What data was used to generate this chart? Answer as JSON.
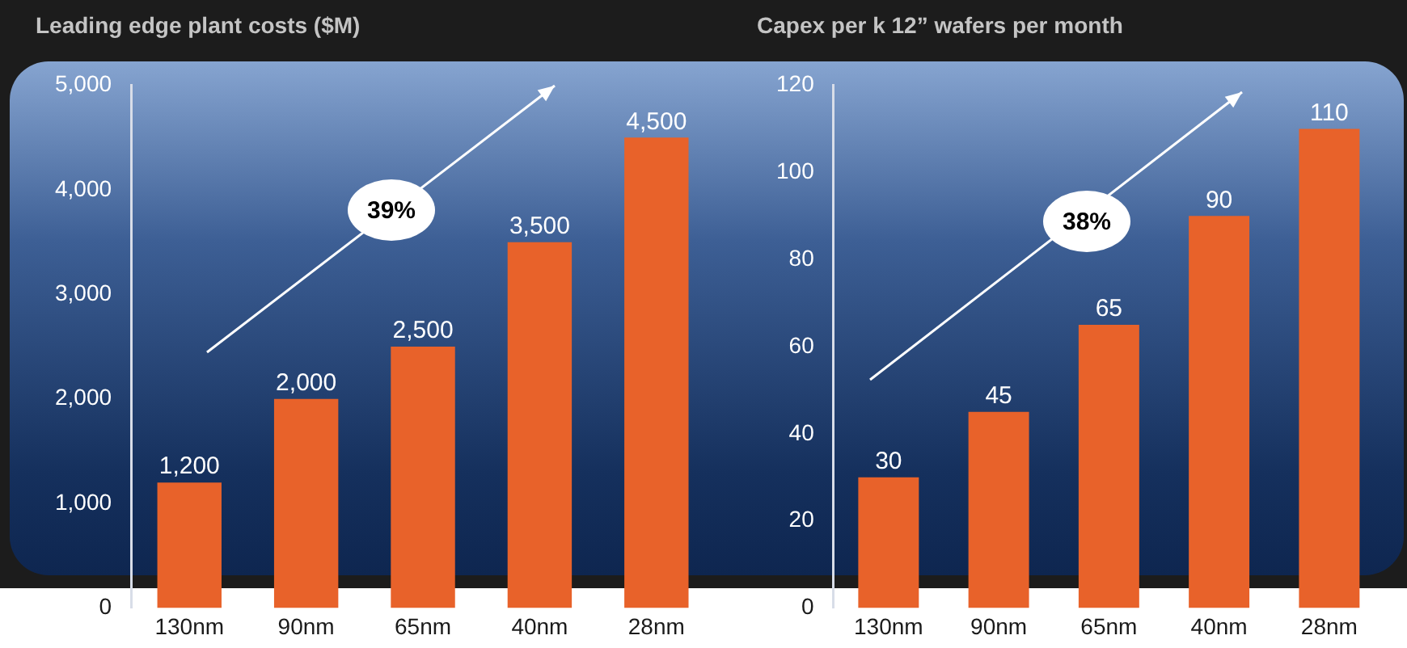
{
  "chart_data": [
    {
      "type": "bar",
      "title": "Leading edge plant costs ($M)",
      "categories": [
        "130nm",
        "90nm",
        "65nm",
        "40nm",
        "28nm"
      ],
      "values": [
        1200,
        2000,
        2500,
        3500,
        4500
      ],
      "value_labels": [
        "1,200",
        "2,000",
        "2,500",
        "3,500",
        "4,500"
      ],
      "color": "#e8622a",
      "ylim": [
        0,
        5000
      ],
      "yticks": [
        0,
        {
          "value": 1000,
          "label": "1,000"
        },
        {
          "value": 2000,
          "label": "2,000"
        },
        {
          "value": 3000,
          "label": "3,000"
        },
        {
          "value": 4000,
          "label": "4,000"
        },
        {
          "value": 5000,
          "label": "5,000"
        }
      ],
      "annotations": [
        "39%"
      ]
    },
    {
      "type": "bar",
      "title": "Capex per k 12” wafers per month",
      "categories": [
        "130nm",
        "90nm",
        "65nm",
        "40nm",
        "28nm"
      ],
      "values": [
        30,
        45,
        65,
        90,
        110
      ],
      "data_labels": true,
      "color": "#e8622a",
      "ylim": [
        0,
        120
      ],
      "yticks": [
        0,
        20,
        40,
        60,
        80,
        100,
        120
      ],
      "annotations": [
        "38%"
      ]
    }
  ]
}
